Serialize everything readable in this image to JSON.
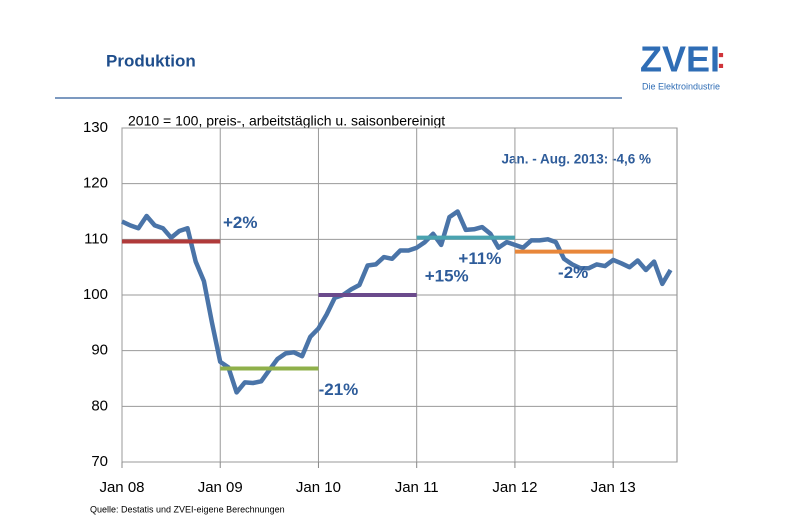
{
  "header": {
    "title": "Produktion",
    "logo": "ZVEI",
    "logo_mark": ":",
    "logo_subtitle": "Die Elektroindustrie"
  },
  "chart_data": {
    "type": "line",
    "subtitle": "2010 = 100, preis-, arbeitstäglich u. saisonbereinigt",
    "annotation": "Jan. - Aug. 2013: -4,6 %",
    "categories": [
      "Jan 08",
      null,
      null,
      null,
      null,
      null,
      null,
      null,
      null,
      null,
      null,
      null,
      "Jan 09",
      null,
      null,
      null,
      null,
      null,
      null,
      null,
      null,
      null,
      null,
      null,
      "Jan 10",
      null,
      null,
      null,
      null,
      null,
      null,
      null,
      null,
      null,
      null,
      null,
      "Jan 11",
      null,
      null,
      null,
      null,
      null,
      null,
      null,
      null,
      null,
      null,
      null,
      "Jan 12",
      null,
      null,
      null,
      null,
      null,
      null,
      null,
      null,
      null,
      null,
      null,
      "Jan 13",
      null,
      null,
      null,
      null,
      null,
      null,
      null
    ],
    "values": [
      113.2,
      112.5,
      112,
      114.2,
      112.5,
      112,
      110.3,
      111.5,
      112,
      106,
      102.5,
      95,
      88,
      87,
      82.5,
      84.3,
      84.2,
      84.5,
      86.5,
      88.5,
      89.5,
      89.7,
      89,
      92.5,
      94,
      96.5,
      99.5,
      100,
      101,
      101.8,
      105.3,
      105.5,
      106.8,
      106.5,
      108,
      108,
      108.5,
      109.5,
      111,
      109,
      114,
      115,
      111.7,
      111.8,
      112.2,
      111,
      108.5,
      109.5,
      109,
      108.5,
      109.8,
      109.8,
      110,
      109.5,
      106.5,
      105.5,
      104.8,
      104.8,
      105.5,
      105.2,
      106.3,
      105.7,
      105,
      106.2,
      104.5,
      106,
      102,
      104.5
    ],
    "color": "#4a74a8",
    "ylim": [
      70,
      130
    ],
    "yticks": [
      70,
      80,
      90,
      100,
      110,
      120,
      130
    ],
    "grid": true,
    "period_lines": [
      {
        "label": "+2%",
        "value": 109.6,
        "color": "#b03a3a",
        "from": "Jan 08",
        "to": "Jan 09"
      },
      {
        "label": "-21%",
        "value": 86.8,
        "color": "#8fb04a",
        "from": "Jan 09",
        "to": "Jan 10"
      },
      {
        "label": "+15%",
        "value": 100,
        "color": "#6b4a8c",
        "from": "Jan 10",
        "to": "Jan 11"
      },
      {
        "label": "+11%",
        "value": 110.3,
        "color": "#4aa3b0",
        "from": "Jan 11",
        "to": "Jan 12"
      },
      {
        "label": "-2%",
        "value": 107.8,
        "color": "#e8873a",
        "from": "Jan 12",
        "to": "Jan 13"
      }
    ]
  },
  "source": "Quelle: Destatis und ZVEI-eigene Berechnungen"
}
